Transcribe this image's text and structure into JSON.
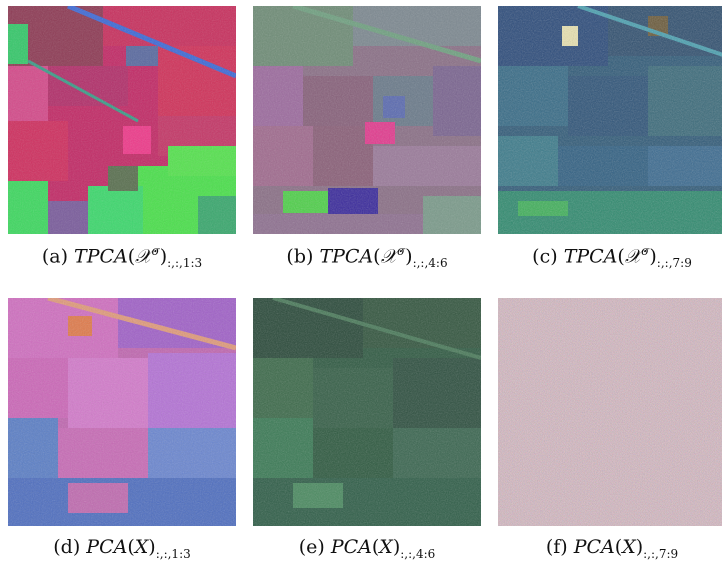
{
  "figure": {
    "panels": [
      {
        "id": "a",
        "label": "(a)",
        "func": "TPCA",
        "arg": "𝒳",
        "sup": "σ",
        "sub": ":,:,1:3"
      },
      {
        "id": "b",
        "label": "(b)",
        "func": "TPCA",
        "arg": "𝒳",
        "sup": "σ",
        "sub": ":,:,4:6"
      },
      {
        "id": "c",
        "label": "(c)",
        "func": "TPCA",
        "arg": "𝒳",
        "sup": "σ",
        "sub": ":,:,7:9"
      },
      {
        "id": "d",
        "label": "(d)",
        "func": "PCA",
        "arg": "X",
        "sup": "",
        "sub": ":,:,1:3"
      },
      {
        "id": "e",
        "label": "(e)",
        "func": "PCA",
        "arg": "X",
        "sup": "",
        "sub": ":,:,4:6"
      },
      {
        "id": "f",
        "label": "(f)",
        "func": "PCA",
        "arg": "X",
        "sup": "",
        "sub": ":,:,7:9"
      }
    ]
  }
}
